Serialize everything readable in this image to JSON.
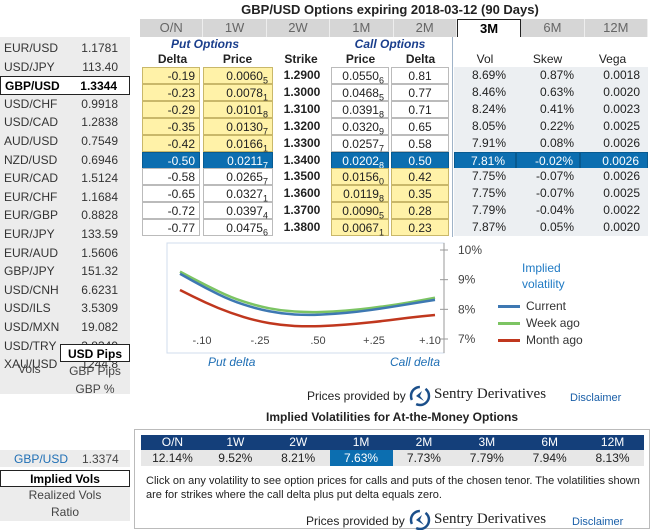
{
  "title": "GBP/USD Options expiring 2018-03-12 (90 Days)",
  "pairs": [
    {
      "name": "EUR/USD",
      "price": "1.1781"
    },
    {
      "name": "USD/JPY",
      "price": "113.40"
    },
    {
      "name": "GBP/USD",
      "price": "1.3344",
      "selected": true
    },
    {
      "name": "USD/CHF",
      "price": "0.9918"
    },
    {
      "name": "USD/CAD",
      "price": "1.2838"
    },
    {
      "name": "AUD/USD",
      "price": "0.7549"
    },
    {
      "name": "NZD/USD",
      "price": "0.6946"
    },
    {
      "name": "EUR/CAD",
      "price": "1.5124"
    },
    {
      "name": "EUR/CHF",
      "price": "1.1684"
    },
    {
      "name": "EUR/GBP",
      "price": "0.8828"
    },
    {
      "name": "EUR/JPY",
      "price": "133.59"
    },
    {
      "name": "EUR/AUD",
      "price": "1.5606"
    },
    {
      "name": "GBP/JPY",
      "price": "151.32"
    },
    {
      "name": "USD/CNH",
      "price": "6.6231"
    },
    {
      "name": "USD/ILS",
      "price": "3.5309"
    },
    {
      "name": "USD/MXN",
      "price": "19.082"
    },
    {
      "name": "USD/TRY",
      "price": "3.8349"
    },
    {
      "name": "XAU/USD",
      "price": "1244.8"
    }
  ],
  "quote_modes": {
    "usd_pips": "USD Pips",
    "gbp_pips": "GBP Pips",
    "gbp_pct": "GBP %",
    "vols": "Vols"
  },
  "tenors": [
    "O/N",
    "1W",
    "2W",
    "1M",
    "2M",
    "3M",
    "6M",
    "12M"
  ],
  "selected_tenor": "3M",
  "headers": {
    "put_options": "Put Options",
    "call_options": "Call Options",
    "delta": "Delta",
    "price": "Price",
    "strike": "Strike",
    "vol": "Vol",
    "skew": "Skew",
    "vega": "Vega"
  },
  "rows": [
    {
      "put_delta": "-0.19",
      "put_price": "0.0060",
      "put_price_sub": "5",
      "strike": "1.2900",
      "call_price": "0.0550",
      "call_price_sub": "6",
      "call_delta": "0.81",
      "vol": "8.69%",
      "skew": "0.87%",
      "vega": "0.0018"
    },
    {
      "put_delta": "-0.23",
      "put_price": "0.0078",
      "put_price_sub": "1",
      "strike": "1.3000",
      "call_price": "0.0468",
      "call_price_sub": "5",
      "call_delta": "0.77",
      "vol": "8.46%",
      "skew": "0.63%",
      "vega": "0.0020"
    },
    {
      "put_delta": "-0.29",
      "put_price": "0.0101",
      "put_price_sub": "8",
      "strike": "1.3100",
      "call_price": "0.0391",
      "call_price_sub": "8",
      "call_delta": "0.71",
      "vol": "8.24%",
      "skew": "0.41%",
      "vega": "0.0023"
    },
    {
      "put_delta": "-0.35",
      "put_price": "0.0130",
      "put_price_sub": "7",
      "strike": "1.3200",
      "call_price": "0.0320",
      "call_price_sub": "9",
      "call_delta": "0.65",
      "vol": "8.05%",
      "skew": "0.22%",
      "vega": "0.0025"
    },
    {
      "put_delta": "-0.42",
      "put_price": "0.0166",
      "put_price_sub": "1",
      "strike": "1.3300",
      "call_price": "0.0257",
      "call_price_sub": "7",
      "call_delta": "0.58",
      "vol": "7.91%",
      "skew": "0.08%",
      "vega": "0.0026"
    },
    {
      "put_delta": "-0.50",
      "put_price": "0.0211",
      "put_price_sub": "7",
      "strike": "1.3400",
      "call_price": "0.0202",
      "call_price_sub": "8",
      "call_delta": "0.50",
      "vol": "7.81%",
      "skew": "-0.02%",
      "vega": "0.0026",
      "atm": true
    },
    {
      "put_delta": "-0.58",
      "put_price": "0.0265",
      "put_price_sub": "7",
      "strike": "1.3500",
      "call_price": "0.0156",
      "call_price_sub": "0",
      "call_delta": "0.42",
      "vol": "7.75%",
      "skew": "-0.07%",
      "vega": "0.0026"
    },
    {
      "put_delta": "-0.65",
      "put_price": "0.0327",
      "put_price_sub": "1",
      "strike": "1.3600",
      "call_price": "0.0119",
      "call_price_sub": "8",
      "call_delta": "0.35",
      "vol": "7.75%",
      "skew": "-0.07%",
      "vega": "0.0025"
    },
    {
      "put_delta": "-0.72",
      "put_price": "0.0397",
      "put_price_sub": "4",
      "strike": "1.3700",
      "call_price": "0.0090",
      "call_price_sub": "5",
      "call_delta": "0.28",
      "vol": "7.79%",
      "skew": "-0.04%",
      "vega": "0.0022"
    },
    {
      "put_delta": "-0.77",
      "put_price": "0.0475",
      "put_price_sub": "6",
      "strike": "1.3800",
      "call_price": "0.0067",
      "call_price_sub": "1",
      "call_delta": "0.23",
      "vol": "7.87%",
      "skew": "0.05%",
      "vega": "0.0020"
    }
  ],
  "chart_data": {
    "type": "line",
    "title": "Implied volatility",
    "xlabel_left": "Put delta",
    "xlabel_right": "Call delta",
    "x_ticks": [
      "-.10",
      "-.25",
      ".50",
      "+.25",
      "+.10"
    ],
    "y_ticks": [
      "10%",
      "9%",
      "8%",
      "7%"
    ],
    "ylim": [
      7,
      10
    ],
    "x": [
      0,
      1,
      2,
      3,
      4,
      5,
      6,
      7,
      8,
      9,
      10
    ],
    "series": [
      {
        "name": "Current",
        "color": "#3e78b2",
        "values": [
          9.2,
          8.72,
          8.3,
          8.02,
          7.85,
          7.8,
          7.84,
          7.92,
          8.04,
          8.18,
          8.32
        ]
      },
      {
        "name": "Week ago",
        "color": "#7cc463",
        "values": [
          9.27,
          8.82,
          8.4,
          8.12,
          7.95,
          7.9,
          7.92,
          7.99,
          8.1,
          8.23,
          8.39
        ]
      },
      {
        "name": "Month ago",
        "color": "#c0371e",
        "values": [
          8.65,
          8.22,
          7.87,
          7.61,
          7.46,
          7.42,
          7.45,
          7.52,
          7.61,
          7.72,
          7.81
        ]
      }
    ]
  },
  "provider": {
    "text": "Prices provided by",
    "name": "Sentry Derivatives",
    "disclaimer": "Disclaimer"
  },
  "atm": {
    "title": "Implied Volatilities for At-the-Money Options",
    "pair": "GBP/USD",
    "price": "1.3374",
    "tenors": [
      "O/N",
      "1W",
      "2W",
      "1M",
      "2M",
      "3M",
      "6M",
      "12M"
    ],
    "values": [
      "12.14%",
      "9.52%",
      "8.21%",
      "7.63%",
      "7.73%",
      "7.79%",
      "7.94%",
      "8.13%"
    ],
    "selected_index": 3,
    "note": "Click on any volatility to see option prices for calls and puts of the chosen tenor. The volatilities shown are for strikes where the call delta plus put delta equals zero.",
    "modes": {
      "implied": "Implied Vols",
      "realized": "Realized Vols",
      "ratio": "Ratio"
    }
  }
}
